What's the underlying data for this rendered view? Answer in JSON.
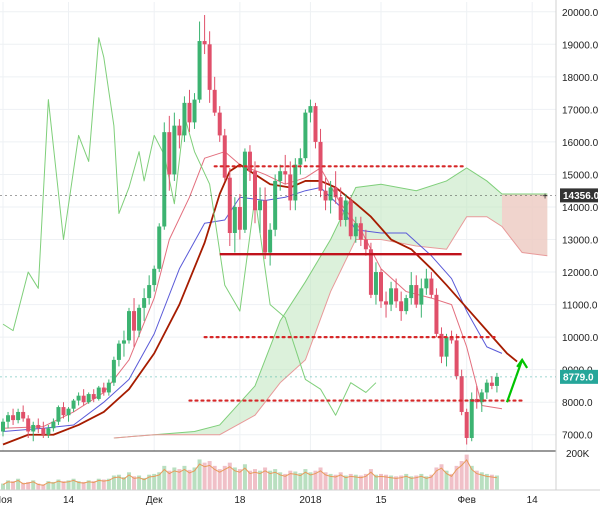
{
  "chart_data": {
    "type": "candlestick",
    "y_axis": {
      "range": [
        6500,
        20300
      ],
      "ticks": [
        7000,
        8000,
        9000,
        10000,
        11000,
        12000,
        13000,
        14000,
        15000,
        16000,
        17000,
        18000,
        19000,
        20000
      ],
      "tick_labels": [
        "7000.0",
        "8000.0",
        "9000.0",
        "10000.0",
        "11000.0",
        "12000.0",
        "13000.0",
        "14000.0",
        "15000.0",
        "16000.0",
        "17000.0",
        "18000.0",
        "19000.0",
        "20000.0"
      ]
    },
    "x_axis": {
      "ticks": [
        {
          "label": "Ноя",
          "day": 0
        },
        {
          "label": "14",
          "day": 13
        },
        {
          "label": "Дек",
          "day": 30
        },
        {
          "label": "18",
          "day": 47
        },
        {
          "label": "2018",
          "day": 61
        },
        {
          "label": "15",
          "day": 75
        },
        {
          "label": "Фев",
          "day": 92
        },
        {
          "label": "14",
          "day": 105
        }
      ]
    },
    "volume_axis": {
      "label": "200K"
    },
    "price_badges": [
      {
        "value": "14356.0",
        "price": 14356,
        "color": "#333333"
      },
      {
        "value": "8779.0",
        "price": 8779,
        "color": "#26a69a"
      }
    ],
    "ohlc": [
      [
        7100,
        7500,
        6950,
        7400
      ],
      [
        7400,
        7700,
        7200,
        7600
      ],
      [
        7600,
        7800,
        7300,
        7450
      ],
      [
        7450,
        7800,
        7350,
        7700
      ],
      [
        7700,
        7900,
        7400,
        7500
      ],
      [
        7500,
        7600,
        6900,
        7100
      ],
      [
        7100,
        7400,
        6800,
        7300
      ],
      [
        7300,
        7500,
        7050,
        7200
      ],
      [
        7200,
        7400,
        6900,
        7000
      ],
      [
        7000,
        7300,
        6900,
        7200
      ],
      [
        7200,
        7500,
        7100,
        7400
      ],
      [
        7400,
        7900,
        7300,
        7850
      ],
      [
        7850,
        8000,
        7500,
        7600
      ],
      [
        7600,
        7850,
        7400,
        7800
      ],
      [
        7800,
        8100,
        7700,
        8050
      ],
      [
        8050,
        8300,
        7900,
        8200
      ],
      [
        8200,
        8400,
        7900,
        8000
      ],
      [
        8000,
        8300,
        7950,
        8250
      ],
      [
        8250,
        8400,
        8000,
        8100
      ],
      [
        8100,
        8500,
        8050,
        8450
      ],
      [
        8450,
        8600,
        8200,
        8300
      ],
      [
        8300,
        8700,
        8200,
        8600
      ],
      [
        8600,
        9400,
        8500,
        9300
      ],
      [
        9300,
        9900,
        9100,
        9800
      ],
      [
        9800,
        10200,
        9400,
        9900
      ],
      [
        9900,
        10900,
        9800,
        10800
      ],
      [
        10800,
        11200,
        9700,
        10200
      ],
      [
        10200,
        11000,
        10000,
        10900
      ],
      [
        10900,
        11500,
        10500,
        11200
      ],
      [
        11200,
        11900,
        11000,
        11600
      ],
      [
        11600,
        12200,
        11400,
        12100
      ],
      [
        12100,
        13500,
        12000,
        13400
      ],
      [
        13400,
        16600,
        13300,
        16300
      ],
      [
        16300,
        16800,
        14500,
        15000
      ],
      [
        15000,
        16900,
        14800,
        16500
      ],
      [
        16500,
        16700,
        15800,
        16200
      ],
      [
        16200,
        17400,
        16000,
        17200
      ],
      [
        17200,
        17600,
        16300,
        16600
      ],
      [
        16600,
        17500,
        16400,
        17300
      ],
      [
        17300,
        19700,
        17200,
        19100
      ],
      [
        19100,
        19900,
        18700,
        19000
      ],
      [
        19000,
        19400,
        17200,
        17600
      ],
      [
        17600,
        18000,
        16800,
        16900
      ],
      [
        16900,
        17100,
        16000,
        16200
      ],
      [
        16200,
        16400,
        14800,
        14900
      ],
      [
        14900,
        15200,
        12800,
        13200
      ],
      [
        13200,
        14300,
        12600,
        14000
      ],
      [
        14000,
        14400,
        13000,
        13300
      ],
      [
        13300,
        15800,
        13200,
        15700
      ],
      [
        15700,
        15900,
        14800,
        15100
      ],
      [
        15100,
        15400,
        13500,
        13900
      ],
      [
        13900,
        14600,
        13200,
        14200
      ],
      [
        14200,
        14600,
        12400,
        12600
      ],
      [
        12600,
        13500,
        12200,
        13300
      ],
      [
        13300,
        15000,
        13100,
        14800
      ],
      [
        14800,
        15300,
        14500,
        15100
      ],
      [
        15100,
        15600,
        14700,
        15000
      ],
      [
        15000,
        15400,
        13900,
        14200
      ],
      [
        14200,
        15500,
        13900,
        15300
      ],
      [
        15300,
        15800,
        15000,
        15500
      ],
      [
        15500,
        17000,
        15400,
        16900
      ],
      [
        16900,
        17300,
        16600,
        17100
      ],
      [
        17100,
        17200,
        15800,
        16000
      ],
      [
        16000,
        16400,
        14300,
        14500
      ],
      [
        14500,
        14900,
        13900,
        14200
      ],
      [
        14200,
        14800,
        13800,
        14600
      ],
      [
        14600,
        15100,
        14100,
        14300
      ],
      [
        14300,
        14600,
        13400,
        13600
      ],
      [
        13600,
        14400,
        13400,
        14200
      ],
      [
        14200,
        14300,
        13000,
        13100
      ],
      [
        13100,
        13700,
        12900,
        13500
      ],
      [
        13500,
        13700,
        12800,
        13000
      ],
      [
        13000,
        13300,
        12500,
        12700
      ],
      [
        12700,
        12900,
        11200,
        11300
      ],
      [
        11300,
        12300,
        11000,
        12000
      ],
      [
        12000,
        12100,
        10900,
        11100
      ],
      [
        11100,
        11400,
        10600,
        11000
      ],
      [
        11000,
        11700,
        10800,
        11500
      ],
      [
        11500,
        11800,
        10900,
        11100
      ],
      [
        11100,
        11400,
        10500,
        10800
      ],
      [
        10800,
        11300,
        10700,
        11200
      ],
      [
        11200,
        12000,
        11000,
        11600
      ],
      [
        11600,
        11900,
        10900,
        11000
      ],
      [
        11000,
        11800,
        10600,
        11500
      ],
      [
        11500,
        12100,
        11300,
        11800
      ],
      [
        11800,
        12000,
        11200,
        11300
      ],
      [
        11300,
        11500,
        10000,
        10100
      ],
      [
        10100,
        10300,
        9200,
        9400
      ],
      [
        9400,
        10100,
        9100,
        10000
      ],
      [
        10000,
        10200,
        9800,
        9900
      ],
      [
        9900,
        10100,
        8700,
        8800
      ],
      [
        8800,
        9000,
        7600,
        7700
      ],
      [
        7700,
        7800,
        6700,
        6900
      ],
      [
        6900,
        8300,
        6800,
        8100
      ],
      [
        8100,
        8500,
        7800,
        8000
      ],
      [
        8000,
        8400,
        7700,
        8300
      ],
      [
        8300,
        8700,
        8100,
        8600
      ],
      [
        8600,
        8800,
        8400,
        8500
      ],
      [
        8500,
        8900,
        8300,
        8779
      ]
    ],
    "series": [
      {
        "kind": "ichimoku-tenkan",
        "color": "#e36f7e",
        "data": [
          [
            0,
            7200
          ],
          [
            8,
            7250
          ],
          [
            14,
            7700
          ],
          [
            20,
            8300
          ],
          [
            25,
            9300
          ],
          [
            30,
            11200
          ],
          [
            33,
            13000
          ],
          [
            37,
            14300
          ],
          [
            40,
            15500
          ],
          [
            44,
            15700
          ],
          [
            47,
            15300
          ],
          [
            52,
            15000
          ],
          [
            56,
            14700
          ],
          [
            60,
            14900
          ],
          [
            63,
            15200
          ],
          [
            67,
            14100
          ],
          [
            71,
            13300
          ],
          [
            75,
            12100
          ],
          [
            80,
            11400
          ],
          [
            85,
            11200
          ],
          [
            89,
            11000
          ],
          [
            92,
            9700
          ],
          [
            95,
            7900
          ],
          [
            99,
            7800
          ]
        ]
      },
      {
        "kind": "ichimoku-kijun",
        "color": "#5a5ad8",
        "data": [
          [
            0,
            7100
          ],
          [
            8,
            7200
          ],
          [
            14,
            7300
          ],
          [
            20,
            8000
          ],
          [
            25,
            8700
          ],
          [
            30,
            10100
          ],
          [
            35,
            12100
          ],
          [
            40,
            13500
          ],
          [
            44,
            13600
          ],
          [
            47,
            14300
          ],
          [
            52,
            14200
          ],
          [
            56,
            14300
          ],
          [
            60,
            14500
          ],
          [
            63,
            14600
          ],
          [
            67,
            14000
          ],
          [
            70,
            13300
          ],
          [
            75,
            13200
          ],
          [
            80,
            13200
          ],
          [
            85,
            12500
          ],
          [
            89,
            11800
          ],
          [
            92,
            10800
          ],
          [
            96,
            9700
          ],
          [
            99,
            9500
          ]
        ]
      },
      {
        "kind": "moving-average",
        "color": "#a61c00",
        "data": [
          [
            0,
            6700
          ],
          [
            5,
            7000
          ],
          [
            10,
            7000
          ],
          [
            15,
            7300
          ],
          [
            20,
            7700
          ],
          [
            25,
            8400
          ],
          [
            30,
            9500
          ],
          [
            35,
            11000
          ],
          [
            40,
            12900
          ],
          [
            43,
            14400
          ],
          [
            45,
            15100
          ],
          [
            47,
            15300
          ],
          [
            50,
            15000
          ],
          [
            53,
            14700
          ],
          [
            57,
            14600
          ],
          [
            60,
            14800
          ],
          [
            63,
            14800
          ],
          [
            66,
            14600
          ],
          [
            70,
            14100
          ],
          [
            73,
            13700
          ],
          [
            77,
            13000
          ],
          [
            81,
            12700
          ],
          [
            85,
            12100
          ],
          [
            88,
            11600
          ],
          [
            92,
            10900
          ],
          [
            96,
            10200
          ],
          [
            100,
            9500
          ],
          [
            102,
            9250
          ]
        ]
      },
      {
        "kind": "ichimoku-chikou",
        "color": "#7fcf7a",
        "data": [
          [
            0,
            10400
          ],
          [
            2,
            10200
          ],
          [
            5,
            12000
          ],
          [
            7,
            11500
          ],
          [
            9,
            17300
          ],
          [
            12,
            13000
          ],
          [
            15,
            16200
          ],
          [
            17,
            15400
          ],
          [
            19,
            19200
          ],
          [
            20,
            18600
          ],
          [
            22,
            16500
          ],
          [
            23,
            13800
          ],
          [
            25,
            14600
          ],
          [
            27,
            15700
          ],
          [
            28,
            14800
          ],
          [
            30,
            16200
          ],
          [
            32,
            15600
          ],
          [
            34,
            14100
          ],
          [
            36,
            16800
          ],
          [
            38,
            15700
          ],
          [
            41,
            14700
          ],
          [
            44,
            11600
          ],
          [
            47,
            10800
          ],
          [
            50,
            14300
          ],
          [
            53,
            11000
          ],
          [
            56,
            10600
          ],
          [
            60,
            8700
          ],
          [
            63,
            8400
          ],
          [
            66,
            7600
          ],
          [
            69,
            8600
          ],
          [
            72,
            8300
          ],
          [
            74,
            8600
          ]
        ]
      }
    ],
    "cloud": {
      "span_a": [
        [
          22,
          6900
        ],
        [
          30,
          7000
        ],
        [
          38,
          7100
        ],
        [
          43,
          7300
        ],
        [
          50,
          8500
        ],
        [
          55,
          10500
        ],
        [
          60,
          11700
        ],
        [
          65,
          13000
        ],
        [
          70,
          14600
        ],
        [
          75,
          14700
        ],
        [
          82,
          14500
        ],
        [
          88,
          14800
        ],
        [
          92,
          15200
        ],
        [
          96,
          14800
        ],
        [
          99,
          14400
        ],
        [
          103,
          14400
        ],
        [
          108,
          14400
        ]
      ],
      "span_b": [
        [
          22,
          6900
        ],
        [
          30,
          7000
        ],
        [
          38,
          7000
        ],
        [
          43,
          7000
        ],
        [
          50,
          7600
        ],
        [
          55,
          8600
        ],
        [
          60,
          9300
        ],
        [
          65,
          11400
        ],
        [
          70,
          13000
        ],
        [
          75,
          13000
        ],
        [
          82,
          12800
        ],
        [
          88,
          12700
        ],
        [
          92,
          13700
        ],
        [
          96,
          13700
        ],
        [
          99,
          13400
        ],
        [
          103,
          12600
        ],
        [
          108,
          12500
        ]
      ]
    },
    "annotations": [
      {
        "kind": "dotted-level",
        "color": "#d62728",
        "price": 15250,
        "from_day": 42,
        "to_day": 92
      },
      {
        "kind": "dotted-level",
        "color": "#d62728",
        "price": 10000,
        "from_day": 40,
        "to_day": 98
      },
      {
        "kind": "dotted-level",
        "color": "#d62728",
        "price": 8050,
        "from_day": 37,
        "to_day": 103
      },
      {
        "kind": "solid-level",
        "color": "#c0121c",
        "price": 12550,
        "from_day": 43,
        "to_day": 91
      },
      {
        "kind": "arrow-up",
        "color": "#00c400",
        "from_day": 100,
        "from_price": 8000,
        "to_day": 103,
        "to_price": 9300
      }
    ],
    "volume": [
      40,
      60,
      55,
      70,
      45,
      50,
      60,
      40,
      35,
      55,
      50,
      65,
      55,
      60,
      70,
      55,
      50,
      60,
      55,
      70,
      65,
      70,
      90,
      95,
      80,
      110,
      85,
      90,
      75,
      95,
      100,
      110,
      150,
      120,
      140,
      130,
      150,
      125,
      140,
      190,
      170,
      180,
      150,
      130,
      150,
      170,
      140,
      130,
      160,
      120,
      130,
      120,
      140,
      120,
      130,
      110,
      100,
      120,
      115,
      105,
      130,
      110,
      120,
      140,
      110,
      100,
      95,
      110,
      90,
      100,
      95,
      90,
      100,
      130,
      95,
      100,
      95,
      90,
      85,
      90,
      100,
      85,
      90,
      100,
      85,
      95,
      140,
      160,
      120,
      100,
      150,
      180,
      220,
      150,
      120,
      110,
      100,
      95,
      90
    ]
  }
}
